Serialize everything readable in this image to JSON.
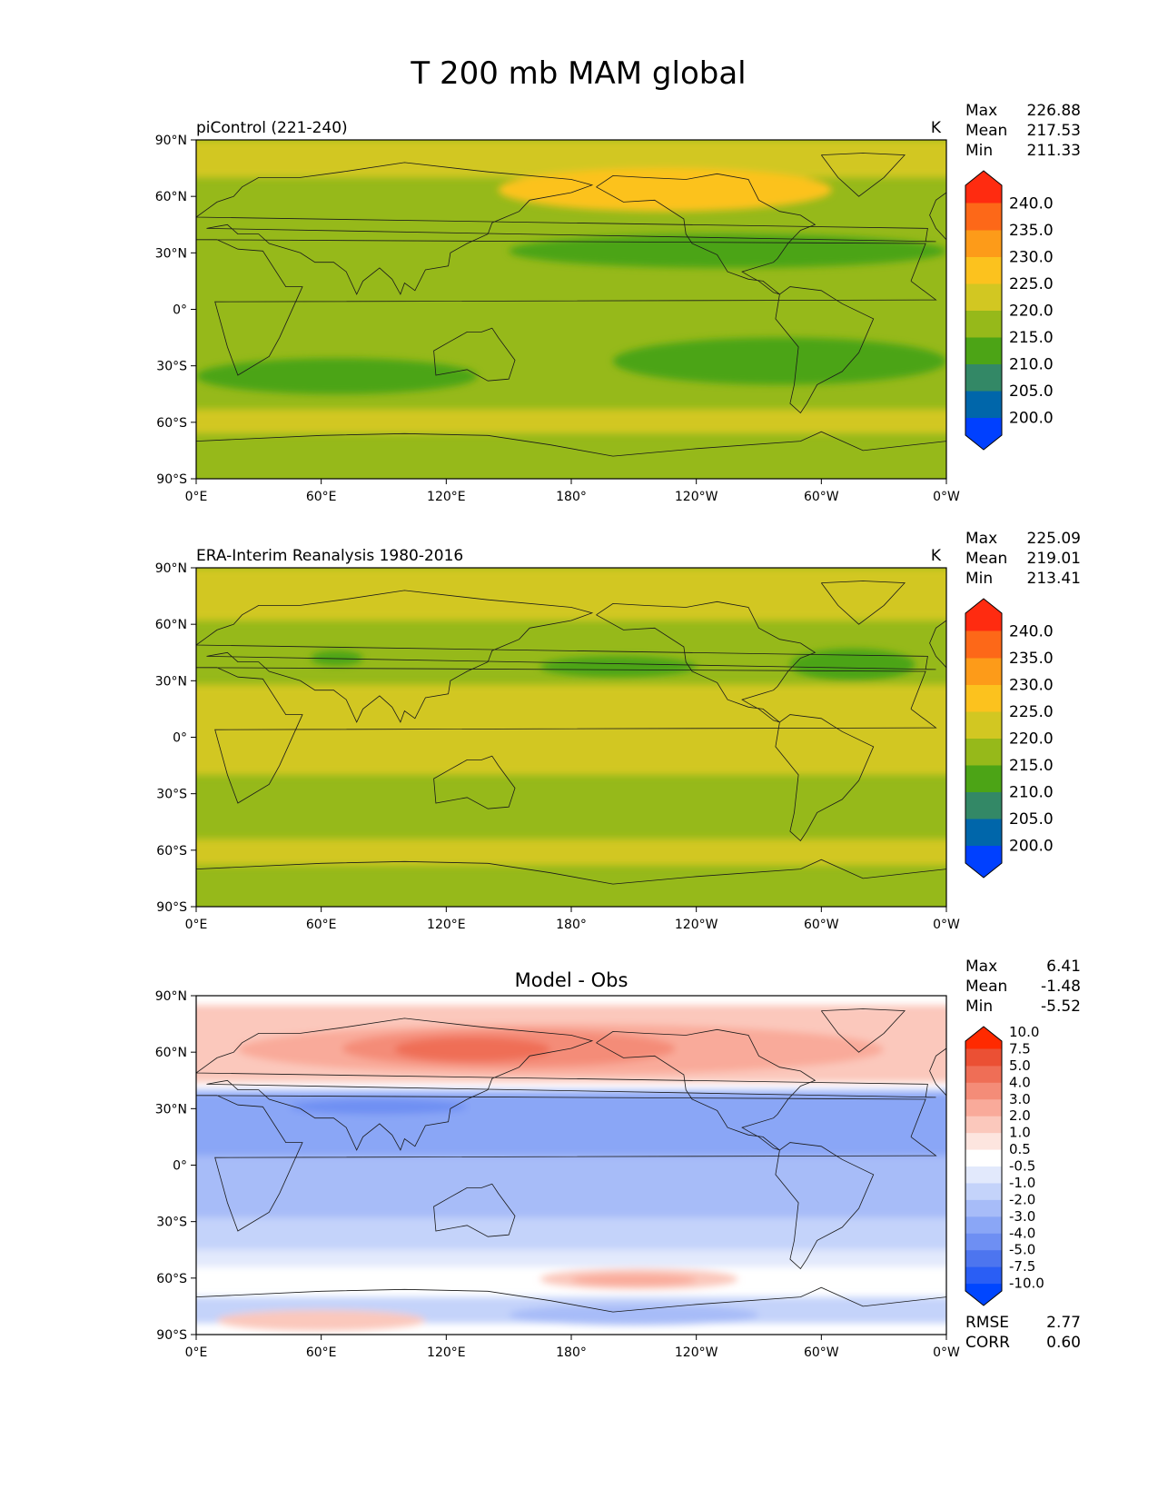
{
  "figure": {
    "title": "T 200 mb MAM global"
  },
  "axes": {
    "lat_ticks": [
      {
        "value": 90,
        "label": "90°N"
      },
      {
        "value": 60,
        "label": "60°N"
      },
      {
        "value": 30,
        "label": "30°N"
      },
      {
        "value": 0,
        "label": "0°"
      },
      {
        "value": -30,
        "label": "30°S"
      },
      {
        "value": -60,
        "label": "60°S"
      },
      {
        "value": -90,
        "label": "90°S"
      }
    ],
    "lon_ticks": [
      {
        "value": 0,
        "label": "0°E"
      },
      {
        "value": 60,
        "label": "60°E"
      },
      {
        "value": 120,
        "label": "120°E"
      },
      {
        "value": 180,
        "label": "180°"
      },
      {
        "value": 240,
        "label": "120°W"
      },
      {
        "value": 300,
        "label": "60°W"
      },
      {
        "value": 360,
        "label": "0°W"
      }
    ]
  },
  "chart_data": [
    {
      "type": "heatmap",
      "title": "piControl (221-240)",
      "units": "K",
      "stats": [
        [
          "Max",
          "226.88"
        ],
        [
          "Mean",
          "217.53"
        ],
        [
          "Min",
          "211.33"
        ]
      ],
      "xlim": [
        0,
        360
      ],
      "ylim": [
        -90,
        90
      ],
      "colorbar": {
        "levels": [
          200,
          205,
          210,
          215,
          220,
          225,
          230,
          235,
          240
        ],
        "labels": [
          "200.0",
          "205.0",
          "210.0",
          "215.0",
          "220.0",
          "225.0",
          "230.0",
          "235.0",
          "240.0"
        ],
        "colors": [
          "#0040ff",
          "#0066aa",
          "#338866",
          "#4ca416",
          "#96b91a",
          "#d2c722",
          "#fcc21e",
          "#fd9b19",
          "#fd6818",
          "#ff2b10"
        ]
      },
      "background_bin": 4,
      "regions": [
        {
          "bin": 5,
          "lon": [
            0,
            360
          ],
          "lat": [
            70,
            90
          ]
        },
        {
          "bin": 5,
          "lon": [
            0,
            360
          ],
          "lat": [
            -66,
            -53
          ]
        },
        {
          "bin": 6,
          "lon": [
            145,
            305
          ],
          "lat": [
            52,
            75
          ]
        },
        {
          "bin": 3,
          "lon": [
            0,
            135
          ],
          "lat": [
            -45,
            -26
          ]
        },
        {
          "bin": 3,
          "lon": [
            150,
            360
          ],
          "lat": [
            22,
            40
          ]
        },
        {
          "bin": 3,
          "lon": [
            200,
            360
          ],
          "lat": [
            -40,
            -15
          ]
        }
      ]
    },
    {
      "type": "heatmap",
      "title": "ERA-Interim Reanalysis 1980-2016",
      "units": "K",
      "stats": [
        [
          "Max",
          "225.09"
        ],
        [
          "Mean",
          "219.01"
        ],
        [
          "Min",
          "213.41"
        ]
      ],
      "xlim": [
        0,
        360
      ],
      "ylim": [
        -90,
        90
      ],
      "colorbar": {
        "levels": [
          200,
          205,
          210,
          215,
          220,
          225,
          230,
          235,
          240
        ],
        "labels": [
          "200.0",
          "205.0",
          "210.0",
          "215.0",
          "220.0",
          "225.0",
          "230.0",
          "235.0",
          "240.0"
        ],
        "colors": [
          "#0040ff",
          "#0066aa",
          "#338866",
          "#4ca416",
          "#96b91a",
          "#d2c722",
          "#fcc21e",
          "#fd9b19",
          "#fd6818",
          "#ff2b10"
        ]
      },
      "background_bin": 4,
      "regions": [
        {
          "bin": 5,
          "lon": [
            0,
            360
          ],
          "lat": [
            62,
            90
          ]
        },
        {
          "bin": 5,
          "lon": [
            0,
            360
          ],
          "lat": [
            -20,
            28
          ]
        },
        {
          "bin": 5,
          "lon": [
            0,
            360
          ],
          "lat": [
            -68,
            -54
          ]
        },
        {
          "bin": 3,
          "lon": [
            55,
            80
          ],
          "lat": [
            38,
            46
          ]
        },
        {
          "bin": 3,
          "lon": [
            165,
            240
          ],
          "lat": [
            32,
            43
          ]
        },
        {
          "bin": 3,
          "lon": [
            285,
            345
          ],
          "lat": [
            30,
            47
          ]
        }
      ]
    },
    {
      "type": "heatmap",
      "title": "Model - Obs",
      "units": "",
      "stats": [
        [
          "Max",
          "6.41"
        ],
        [
          "Mean",
          "-1.48"
        ],
        [
          "Min",
          "-5.52"
        ]
      ],
      "extra_stats": [
        [
          "RMSE",
          "2.77"
        ],
        [
          "CORR",
          "0.60"
        ]
      ],
      "xlim": [
        0,
        360
      ],
      "ylim": [
        -90,
        90
      ],
      "colorbar": {
        "levels": [
          -10,
          -7.5,
          -5,
          -4,
          -3,
          -2,
          -1,
          -0.5,
          0.5,
          1,
          2,
          3,
          4,
          5,
          7.5,
          10
        ],
        "labels": [
          "-10.0",
          "-7.5",
          "-5.0",
          "-4.0",
          "-3.0",
          "-2.0",
          "-1.0",
          "-0.5",
          "0.5",
          "1.0",
          "2.0",
          "3.0",
          "4.0",
          "5.0",
          "7.5",
          "10.0"
        ],
        "colors": [
          "#0046ff",
          "#2a5ef5",
          "#4d75ef",
          "#6e8ff3",
          "#8aa6f6",
          "#a7bcf8",
          "#c4d3fa",
          "#e2e9fc",
          "#ffffff",
          "#fde5df",
          "#fbc8bc",
          "#f9aa9a",
          "#f48c78",
          "#ef6e56",
          "#eb5034",
          "#ff2a00"
        ]
      },
      "background_bin": 8,
      "regions": [
        {
          "bin": 10,
          "lon": [
            0,
            360
          ],
          "lat": [
            44,
            85
          ]
        },
        {
          "bin": 11,
          "lon": [
            20,
            330
          ],
          "lat": [
            48,
            75
          ]
        },
        {
          "bin": 12,
          "lon": [
            70,
            230
          ],
          "lat": [
            52,
            72
          ]
        },
        {
          "bin": 13,
          "lon": [
            95,
            170
          ],
          "lat": [
            55,
            68
          ]
        },
        {
          "bin": 5,
          "lon": [
            0,
            360
          ],
          "lat": [
            -28,
            40
          ]
        },
        {
          "bin": 4,
          "lon": [
            0,
            360
          ],
          "lat": [
            5,
            38
          ]
        },
        {
          "bin": 3,
          "lon": [
            45,
            130
          ],
          "lat": [
            27,
            35
          ]
        },
        {
          "bin": 6,
          "lon": [
            0,
            360
          ],
          "lat": [
            -48,
            -28
          ]
        },
        {
          "bin": 7,
          "lon": [
            0,
            360
          ],
          "lat": [
            -54,
            -45
          ]
        },
        {
          "bin": 10,
          "lon": [
            165,
            260
          ],
          "lat": [
            -66,
            -55
          ]
        },
        {
          "bin": 11,
          "lon": [
            180,
            240
          ],
          "lat": [
            -64,
            -58
          ]
        },
        {
          "bin": 6,
          "lon": [
            0,
            360
          ],
          "lat": [
            -84,
            -70
          ]
        },
        {
          "bin": 5,
          "lon": [
            150,
            270
          ],
          "lat": [
            -85,
            -74
          ]
        },
        {
          "bin": 10,
          "lon": [
            10,
            110
          ],
          "lat": [
            -88,
            -77
          ]
        }
      ]
    }
  ]
}
